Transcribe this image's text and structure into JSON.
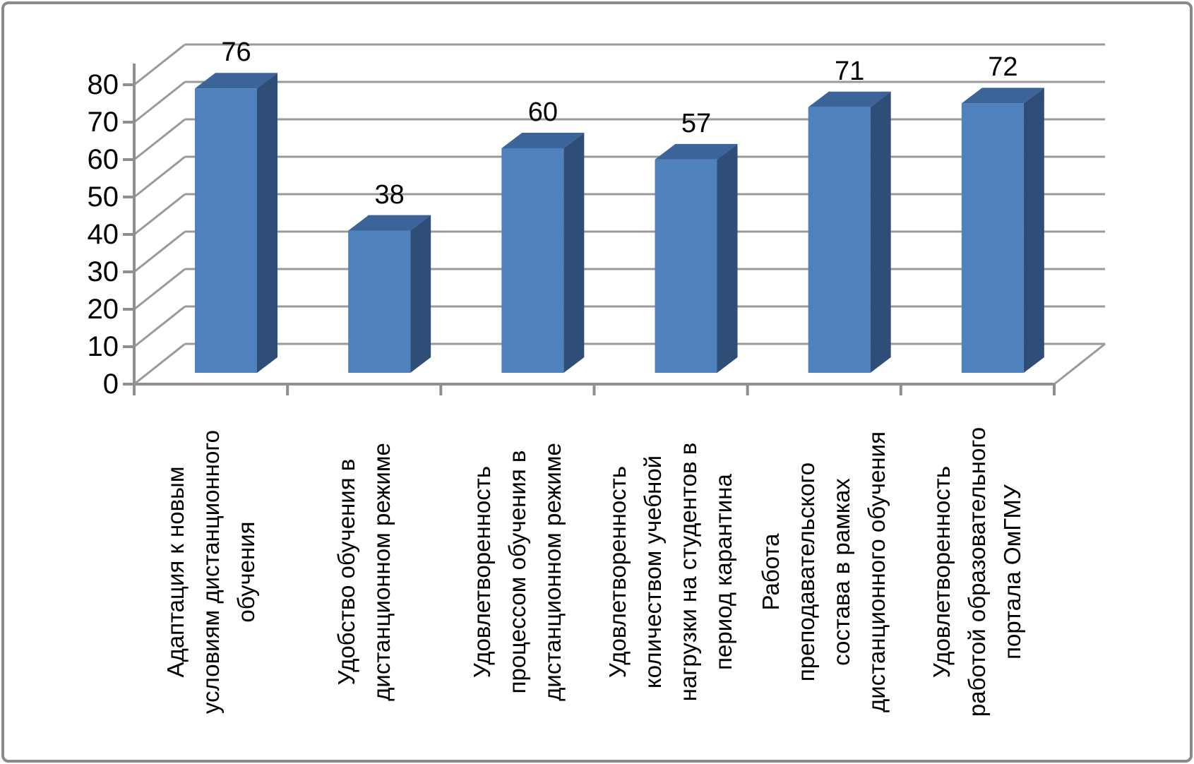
{
  "chart_data": {
    "type": "bar",
    "style": "3d-column",
    "title": "",
    "xlabel": "",
    "ylabel": "",
    "categories": [
      "Адаптация к новым\nусловиям дистанционного\nобучения",
      "Удобство обучения в\nдистанционном режиме",
      "Удовлетворенность\nпроцессом обучения в\nдистанционном режиме",
      "Удовлетворенность\nколичеством учебной\nнагрузки на студентов в\nпериод карантина",
      "Работа\nпреподавательского\nсостава в рамках\nдистанционного обучения",
      "Удовлетворенность\nработой образовательного\nпортала ОмГМУ"
    ],
    "values": [
      76,
      38,
      60,
      57,
      71,
      72
    ],
    "data_labels_shown": true,
    "yticks": [
      "0",
      "10",
      "20",
      "30",
      "40",
      "50",
      "60",
      "70",
      "80"
    ],
    "ylim": [
      0,
      80
    ],
    "ytick_step": 10,
    "grid": true,
    "legend": "none",
    "colors": {
      "bar_front": "#4f81bd",
      "bar_top": "#3d6498",
      "bar_side": "#2e4d77",
      "gridline": "#9a9a9a",
      "axis": "#8f8f8f",
      "label_text": "#000000",
      "background": "#ffffff",
      "frame_border": "#8a8a8a"
    }
  }
}
